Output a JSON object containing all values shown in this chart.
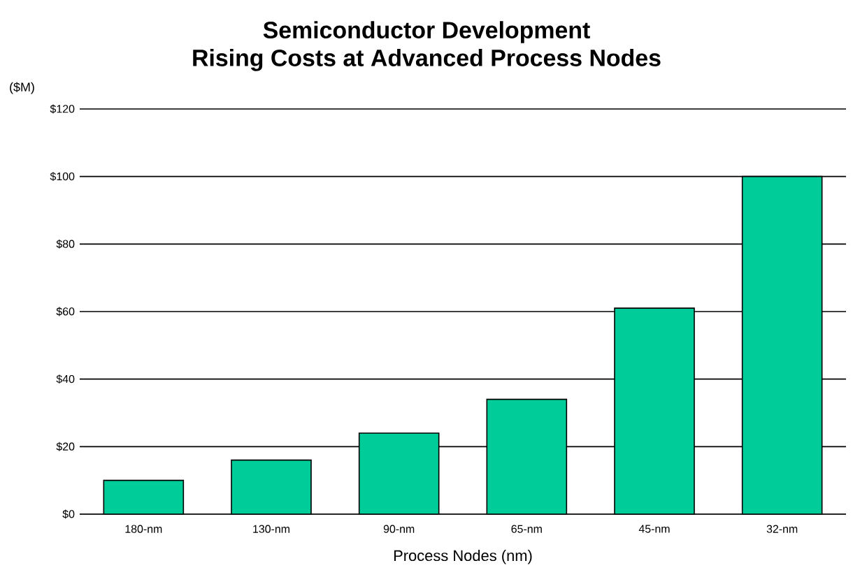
{
  "chart_data": {
    "type": "bar",
    "title": "Semiconductor Development\nRising Costs at Advanced Process Nodes",
    "ylabel": "($M)",
    "xlabel": "Process Nodes (nm)",
    "categories": [
      "180-nm",
      "130-nm",
      "90-nm",
      "65-nm",
      "45-nm",
      "32-nm"
    ],
    "values": [
      10,
      16,
      24,
      34,
      61,
      100
    ],
    "color": "#00cc99",
    "ylim": [
      0,
      120
    ],
    "yticks": [
      {
        "value": 0,
        "label": "$0"
      },
      {
        "value": 20,
        "label": "$20"
      },
      {
        "value": 40,
        "label": "$40"
      },
      {
        "value": 60,
        "label": "$60"
      },
      {
        "value": 80,
        "label": "$80"
      },
      {
        "value": 100,
        "label": "$100"
      },
      {
        "value": 120,
        "label": "$120"
      }
    ],
    "grid": "y"
  }
}
